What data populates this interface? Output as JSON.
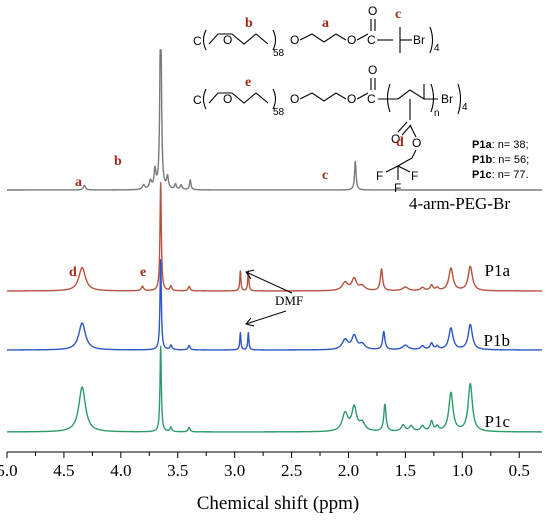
{
  "chart_data": {
    "type": "line",
    "title": "",
    "xlabel": "Chemical shift (ppm)",
    "ylabel": "",
    "xlim": [
      5.0,
      0.3
    ],
    "x_reversed": true,
    "grid": false,
    "xticks": [
      "5.0",
      "4.5",
      "4.0",
      "3.5",
      "3.0",
      "2.5",
      "2.0",
      "1.5",
      "1.0",
      "0.5"
    ],
    "series": [
      {
        "name": "4-arm-PEG-Br",
        "color": "#7a7a7a",
        "baseline": 0.0,
        "peaks": [
          {
            "x": 4.32,
            "h": 0.6,
            "w": 0.012
          },
          {
            "x": 3.8,
            "h": 0.6,
            "w": 0.012
          },
          {
            "x": 3.74,
            "h": 1.1,
            "w": 0.012
          },
          {
            "x": 3.7,
            "h": 2.5,
            "w": 0.01
          },
          {
            "x": 3.65,
            "h": 30.0,
            "w": 0.007
          },
          {
            "x": 3.59,
            "h": 1.6,
            "w": 0.01
          },
          {
            "x": 3.52,
            "h": 0.7,
            "w": 0.01
          },
          {
            "x": 3.47,
            "h": 0.6,
            "w": 0.01
          },
          {
            "x": 3.39,
            "h": 1.3,
            "w": 0.008
          },
          {
            "x": 1.94,
            "h": 3.8,
            "w": 0.008
          }
        ]
      },
      {
        "name": "P1a",
        "color": "#b5533f",
        "baseline": 0.0,
        "peaks": [
          {
            "x": 4.34,
            "h": 2.6,
            "w": 0.035
          },
          {
            "x": 3.81,
            "h": 0.5,
            "w": 0.012
          },
          {
            "x": 3.65,
            "h": 12.0,
            "w": 0.007
          },
          {
            "x": 3.56,
            "h": 0.5,
            "w": 0.01
          },
          {
            "x": 3.4,
            "h": 0.5,
            "w": 0.01
          },
          {
            "x": 2.95,
            "h": 2.2,
            "w": 0.006
          },
          {
            "x": 2.88,
            "h": 2.2,
            "w": 0.006
          },
          {
            "x": 2.03,
            "h": 0.9,
            "w": 0.03
          },
          {
            "x": 1.95,
            "h": 1.3,
            "w": 0.025
          },
          {
            "x": 1.88,
            "h": 0.5,
            "w": 0.03
          },
          {
            "x": 1.71,
            "h": 2.4,
            "w": 0.012
          },
          {
            "x": 1.5,
            "h": 0.4,
            "w": 0.03
          },
          {
            "x": 1.35,
            "h": 0.35,
            "w": 0.02
          },
          {
            "x": 1.27,
            "h": 0.6,
            "w": 0.015
          },
          {
            "x": 1.22,
            "h": 0.3,
            "w": 0.015
          },
          {
            "x": 1.1,
            "h": 2.5,
            "w": 0.022
          },
          {
            "x": 0.93,
            "h": 2.7,
            "w": 0.022
          }
        ]
      },
      {
        "name": "P1b",
        "color": "#2c55c8",
        "baseline": 0.0,
        "peaks": [
          {
            "x": 4.34,
            "h": 3.0,
            "w": 0.035
          },
          {
            "x": 3.65,
            "h": 10.0,
            "w": 0.007
          },
          {
            "x": 3.56,
            "h": 0.5,
            "w": 0.01
          },
          {
            "x": 3.4,
            "h": 0.5,
            "w": 0.01
          },
          {
            "x": 2.95,
            "h": 1.9,
            "w": 0.006
          },
          {
            "x": 2.88,
            "h": 1.9,
            "w": 0.006
          },
          {
            "x": 2.03,
            "h": 1.1,
            "w": 0.03
          },
          {
            "x": 1.95,
            "h": 1.5,
            "w": 0.025
          },
          {
            "x": 1.88,
            "h": 0.6,
            "w": 0.03
          },
          {
            "x": 1.69,
            "h": 2.0,
            "w": 0.012
          },
          {
            "x": 1.5,
            "h": 0.5,
            "w": 0.03
          },
          {
            "x": 1.35,
            "h": 0.4,
            "w": 0.02
          },
          {
            "x": 1.27,
            "h": 0.7,
            "w": 0.015
          },
          {
            "x": 1.22,
            "h": 0.35,
            "w": 0.015
          },
          {
            "x": 1.1,
            "h": 2.4,
            "w": 0.022
          },
          {
            "x": 0.93,
            "h": 2.8,
            "w": 0.022
          }
        ]
      },
      {
        "name": "P1c",
        "color": "#2e9a6a",
        "baseline": 0.0,
        "peaks": [
          {
            "x": 4.34,
            "h": 5.0,
            "w": 0.035
          },
          {
            "x": 3.65,
            "h": 9.5,
            "w": 0.007
          },
          {
            "x": 3.56,
            "h": 0.5,
            "w": 0.01
          },
          {
            "x": 3.4,
            "h": 0.5,
            "w": 0.01
          },
          {
            "x": 2.03,
            "h": 2.0,
            "w": 0.03
          },
          {
            "x": 1.95,
            "h": 2.6,
            "w": 0.025
          },
          {
            "x": 1.88,
            "h": 0.9,
            "w": 0.03
          },
          {
            "x": 1.68,
            "h": 3.0,
            "w": 0.012
          },
          {
            "x": 1.52,
            "h": 0.7,
            "w": 0.02
          },
          {
            "x": 1.45,
            "h": 0.6,
            "w": 0.02
          },
          {
            "x": 1.35,
            "h": 0.6,
            "w": 0.02
          },
          {
            "x": 1.27,
            "h": 1.1,
            "w": 0.015
          },
          {
            "x": 1.22,
            "h": 0.5,
            "w": 0.015
          },
          {
            "x": 1.1,
            "h": 4.3,
            "w": 0.022
          },
          {
            "x": 0.93,
            "h": 5.3,
            "w": 0.022
          }
        ]
      }
    ],
    "annotations": [
      {
        "text": "a",
        "series": "4-arm-PEG-Br",
        "x": 4.55
      },
      {
        "text": "b",
        "series": "4-arm-PEG-Br",
        "x": 3.84
      },
      {
        "text": "c",
        "series": "4-arm-PEG-Br",
        "x": 2.09
      },
      {
        "text": "d",
        "series": "P1a",
        "x": 4.53
      },
      {
        "text": "e",
        "series": "P1a",
        "x": 3.86
      },
      {
        "text": "DMF",
        "points_to": [
          2.88,
          2.95
        ]
      }
    ]
  },
  "structure": {
    "line1": {
      "end_group": "C",
      "repeat_count": "58",
      "arm_count": "4",
      "letter_a": "a",
      "letter_b": "b",
      "letter_c": "c",
      "atom_o": "O",
      "atom_br": "Br"
    },
    "line2": {
      "end_group": "C",
      "repeat_count": "58",
      "arm_count": "4",
      "letter_d": "d",
      "letter_e": "e",
      "subscript_n": "n",
      "atom_o": "O",
      "atom_br": "Br",
      "atom_f": "F"
    },
    "dp_values": [
      {
        "label": "P1a",
        "value": ": n= 38;"
      },
      {
        "label": "P1b",
        "value": ": n= 56;"
      },
      {
        "label": "P1c",
        "value": ": n= 77."
      }
    ]
  }
}
